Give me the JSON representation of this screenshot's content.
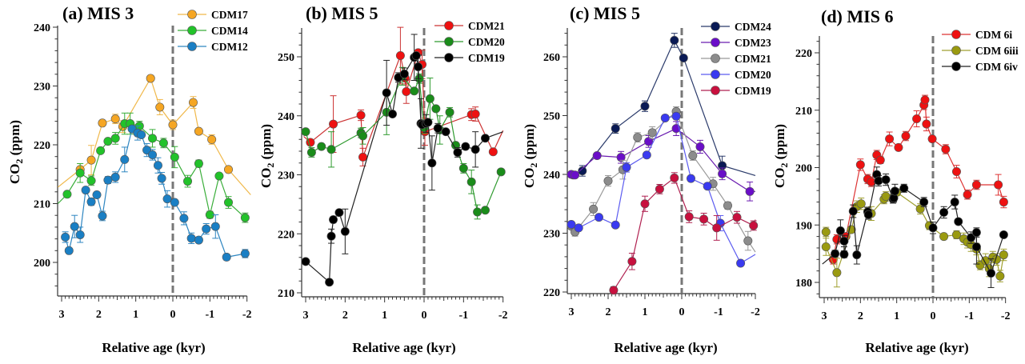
{
  "chart_data": [
    {
      "type": "line",
      "panel_label": "(a)",
      "title": "MIS 3",
      "xlabel": "Relative age (kyr)",
      "ylabel": "CO2 (ppm)",
      "xlim": [
        3,
        -2
      ],
      "ylim": [
        195,
        240
      ],
      "xticks": [
        3,
        2,
        1,
        0,
        -1,
        -2
      ],
      "yticks": [
        200,
        210,
        220,
        230,
        240
      ],
      "vline_x": 0,
      "legend_position": "top-right",
      "series": [
        {
          "name": "CDM17",
          "color": "#f5a623",
          "line": "#f0b84a",
          "x": [
            3.1,
            2.5,
            2.2,
            1.9,
            1.55,
            1.35,
            0.6,
            0.35,
            0.0,
            -0.55,
            -0.7,
            -1.05,
            -1.5,
            -2.1
          ],
          "y": [
            212.8,
            215.8,
            217.4,
            223.7,
            224.4,
            223.1,
            231.3,
            226.4,
            223.4,
            227.2,
            222.3,
            220.9,
            215.8,
            211.5
          ],
          "err": [
            0,
            1,
            2.5,
            0,
            0.8,
            1,
            0,
            1.3,
            0.8,
            1,
            0,
            0.8,
            0,
            0
          ]
        },
        {
          "name": "CDM14",
          "color": "#22c22a",
          "line": "#3aae3a",
          "x": [
            3.1,
            2.85,
            2.5,
            2.2,
            1.95,
            1.75,
            1.55,
            1.3,
            1.15,
            0.9,
            0.55,
            0.25,
            -0.05,
            -0.4,
            -0.7,
            -1.0,
            -1.25,
            -1.5,
            -1.95
          ],
          "y": [
            210.0,
            211.6,
            215.2,
            213.9,
            219.0,
            220.6,
            221.1,
            223.6,
            223.6,
            223.2,
            221.1,
            220.3,
            217.9,
            213.8,
            216.8,
            208.1,
            214.7,
            210.2,
            207.6
          ],
          "err": [
            0,
            0,
            1.6,
            0.8,
            0,
            0,
            1,
            1.8,
            1.8,
            0.8,
            1.5,
            0.8,
            1.8,
            1,
            0.6,
            0.6,
            0,
            1,
            0.8
          ]
        },
        {
          "name": "CDM12",
          "color": "#1a7fc4",
          "line": "#2e86c1",
          "x": [
            2.9,
            2.8,
            2.65,
            2.5,
            2.35,
            2.2,
            2.05,
            1.9,
            1.75,
            1.55,
            1.3,
            1.1,
            0.95,
            0.85,
            0.7,
            0.55,
            0.4,
            0.3,
            0.15,
            -0.05,
            -0.3,
            -0.5,
            -0.7,
            -0.9,
            -1.15,
            -1.45,
            -1.95
          ],
          "y": [
            204.3,
            202.0,
            206.1,
            204.7,
            212.3,
            210.3,
            211.5,
            207.9,
            214.0,
            214.5,
            217.5,
            222.7,
            222.0,
            221.7,
            219.1,
            218.3,
            216.5,
            214.3,
            210.8,
            210.2,
            207.5,
            204.1,
            203.8,
            205.7,
            206.1,
            200.9,
            201.5
          ],
          "err": [
            0.9,
            0,
            1.9,
            1.3,
            0,
            0.6,
            0,
            0.8,
            0.6,
            0.9,
            2.1,
            0,
            1.2,
            0,
            1.1,
            0.9,
            1.3,
            1,
            1.4,
            0,
            1.1,
            0.9,
            0,
            0.9,
            2,
            0.5,
            0.7
          ]
        }
      ]
    },
    {
      "type": "line",
      "panel_label": "(b)",
      "title": "MIS 5",
      "xlabel": "Relative age (kyr)",
      "ylabel": "CO2 (ppm)",
      "xlim": [
        3,
        -2
      ],
      "ylim": [
        209.5,
        255.5
      ],
      "xticks": [
        3,
        2,
        1,
        0,
        -1,
        -2
      ],
      "yticks": [
        210,
        220,
        230,
        240,
        250
      ],
      "vline_x": 0,
      "legend_position": "top-right",
      "series": [
        {
          "name": "CDM21",
          "color": "#ee1111",
          "line": "#cc3333",
          "x": [
            3.05,
            2.88,
            2.3,
            1.6,
            1.55,
            0.6,
            0.48,
            0.45,
            0.15,
            0.05,
            -0.02,
            -1.2,
            -1.3,
            -1.75,
            -2.0
          ],
          "y": [
            236.5,
            235.5,
            238.6,
            240.1,
            233.0,
            250.2,
            246.4,
            244.1,
            250.7,
            248.7,
            237.3,
            240.2,
            240.3,
            233.9,
            237.5
          ],
          "err": [
            0,
            0,
            4.8,
            0.9,
            1.5,
            4.8,
            1,
            2,
            0.5,
            2.4,
            2.3,
            1,
            1.2,
            0,
            0
          ]
        },
        {
          "name": "CDM20",
          "color": "#1a8c1a",
          "line": "#2e9a2e",
          "x": [
            3.0,
            2.85,
            2.6,
            2.35,
            1.6,
            1.55,
            0.95,
            0.55,
            0.25,
            0.12,
            0.0,
            -0.15,
            -0.3,
            -0.4,
            -0.65,
            -0.8,
            -1.0,
            -1.2,
            -1.35,
            -1.55,
            -1.95
          ],
          "y": [
            237.3,
            233.8,
            234.8,
            234.3,
            237.1,
            236.6,
            240.6,
            246.7,
            244.2,
            246.3,
            238.0,
            242.9,
            241.2,
            237.6,
            240.6,
            235.0,
            231.1,
            228.8,
            223.7,
            224.0,
            230.5
          ],
          "err": [
            0,
            0.8,
            0,
            3,
            0.8,
            1.4,
            3.8,
            1.5,
            0,
            0.8,
            1,
            3.5,
            0,
            2.4,
            0.8,
            0,
            0.8,
            2,
            1.2,
            0,
            0
          ]
        },
        {
          "name": "CDM19",
          "color": "#000000",
          "line": "#222222",
          "x": [
            3.0,
            2.4,
            2.35,
            2.3,
            2.15,
            2.0,
            0.95,
            0.8,
            0.65,
            0.5,
            0.25,
            0.2,
            0.15,
            0.08,
            0.05,
            -0.05,
            -0.1,
            -0.2,
            -0.35,
            -0.55,
            -0.85,
            -1.05,
            -1.3,
            -1.55,
            -2.0
          ],
          "y": [
            215.3,
            211.8,
            219.6,
            222.4,
            223.6,
            220.4,
            243.9,
            240.3,
            246.5,
            247.1,
            249.9,
            250.2,
            248.3,
            238.7,
            238.5,
            238.7,
            238.9,
            232.0,
            237.9,
            237.3,
            233.8,
            234.8,
            234.3,
            236.2,
            237.3
          ],
          "err": [
            0,
            0,
            1.2,
            0.5,
            0,
            3.8,
            5.5,
            0,
            0.8,
            1,
            3.9,
            0,
            2,
            4.2,
            0,
            1.5,
            0,
            4.6,
            0.8,
            0,
            0.8,
            0,
            3,
            0,
            0
          ]
        }
      ]
    },
    {
      "type": "line",
      "panel_label": "(c)",
      "title": "MIS 5",
      "xlabel": "Relative age (kyr)",
      "ylabel": "CO2 (ppm)",
      "xlim": [
        3,
        -2
      ],
      "ylim": [
        219.5,
        265
      ],
      "xticks": [
        3,
        2,
        1,
        0,
        -1,
        -2
      ],
      "yticks": [
        220,
        230,
        240,
        250,
        260
      ],
      "vline_x": 0,
      "legend_position": "top-right",
      "series": [
        {
          "name": "CDM24",
          "color": "#0a1a55",
          "line": "#2a3a6a",
          "x": [
            2.95,
            2.7,
            1.8,
            1.0,
            0.2,
            -0.05,
            -1.1,
            -2.0
          ],
          "y": [
            239.9,
            240.6,
            247.8,
            251.6,
            262.8,
            259.8,
            241.5,
            239.8
          ],
          "err": [
            0,
            0.9,
            0.8,
            0.9,
            1.2,
            0,
            1.6,
            0
          ]
        },
        {
          "name": "CDM23",
          "color": "#6a0ec8",
          "line": "#6a1cb0",
          "x": [
            3.0,
            2.9,
            2.3,
            1.65,
            0.9,
            0.15,
            -0.5,
            -1.1,
            -1.85,
            -2.0
          ],
          "y": [
            240.0,
            239.9,
            243.2,
            242.9,
            245.6,
            247.8,
            244.7,
            240.1,
            237.1,
            237.1
          ],
          "err": [
            0,
            0,
            0,
            1,
            1,
            1.2,
            1.1,
            1,
            1.6,
            0
          ]
        },
        {
          "name": "CDM21",
          "color": "#8c8c8c",
          "line": "#999999",
          "x": [
            3.0,
            2.9,
            2.4,
            2.0,
            1.6,
            1.2,
            0.8,
            0.15,
            -0.3,
            -0.85,
            -1.25,
            -1.8,
            -2.0
          ],
          "y": [
            231.2,
            230.2,
            234.1,
            238.9,
            240.8,
            246.3,
            247.1,
            250.7,
            243.2,
            238.4,
            234.7,
            228.7,
            226.8
          ],
          "err": [
            0,
            0.7,
            1.1,
            0.9,
            1.6,
            0.8,
            1,
            0.8,
            0.8,
            1.1,
            0.6,
            1.6,
            0
          ]
        },
        {
          "name": "CDM20",
          "color": "#3a3af0",
          "line": "#5c5cf0",
          "x": [
            3.0,
            2.8,
            2.25,
            1.8,
            1.5,
            0.95,
            0.45,
            0.15,
            -0.25,
            -0.7,
            -1.05,
            -1.6,
            -2.0
          ],
          "y": [
            231.5,
            230.9,
            232.7,
            231.4,
            241.2,
            243.3,
            249.6,
            249.9,
            239.3,
            238.0,
            231.7,
            224.9,
            226.4
          ],
          "err": [
            0,
            0,
            0,
            0,
            0.8,
            0,
            0,
            0.5,
            0,
            0,
            1.3,
            0,
            0
          ]
        },
        {
          "name": "CDM19",
          "color": "#c8103e",
          "line": "#b02050",
          "x": [
            1.85,
            1.35,
            1.0,
            0.6,
            0.2,
            -0.2,
            -0.6,
            -0.95,
            -1.5,
            -1.95,
            -2.0
          ],
          "y": [
            220.3,
            225.2,
            235.0,
            237.5,
            239.4,
            232.8,
            232.4,
            230.9,
            232.7,
            231.3,
            232.3
          ],
          "err": [
            0.6,
            1.4,
            1.3,
            0.8,
            0.9,
            1,
            1,
            2.1,
            1,
            0.8,
            0
          ]
        }
      ]
    },
    {
      "type": "line",
      "panel_label": "(d)",
      "title": "MIS 6",
      "xlabel": "Relative age (kyr)",
      "ylabel": "CO2 (ppm)",
      "xlim": [
        3,
        -2
      ],
      "ylim": [
        177,
        223
      ],
      "xticks": [
        3,
        2,
        1,
        0,
        -1,
        -2
      ],
      "yticks": [
        180,
        190,
        200,
        210,
        220
      ],
      "vline_x": 0,
      "legend_position": "top-right",
      "series": [
        {
          "name": "CDM 6i",
          "color": "#ee1111",
          "line": "#dd3333",
          "x": [
            2.75,
            2.65,
            2.4,
            2.0,
            1.8,
            1.7,
            1.55,
            1.45,
            1.2,
            0.95,
            0.75,
            0.45,
            0.25,
            0.22,
            0.18,
            0.02,
            -0.35,
            -0.65,
            -0.95,
            -1.2,
            -1.8,
            -1.95
          ],
          "y": [
            184.0,
            187.5,
            188.0,
            200.5,
            198.0,
            197.5,
            202.2,
            201.3,
            205.0,
            203.5,
            205.5,
            208.5,
            210.9,
            211.8,
            207.6,
            205.0,
            203.2,
            199.3,
            195.3,
            197.0,
            197.0,
            194.0
          ],
          "err": [
            0.8,
            0.8,
            0,
            1,
            0.8,
            0.8,
            0.8,
            0.6,
            1.2,
            0,
            0.8,
            1.4,
            0.8,
            0.8,
            1.2,
            0,
            0.8,
            1.1,
            0.8,
            0.8,
            1.8,
            1
          ]
        },
        {
          "name": "CDM 6iii",
          "color": "#9a9a10",
          "line": "#a0a030",
          "x": [
            2.95,
            2.95,
            2.65,
            2.25,
            2.1,
            1.98,
            1.7,
            1.35,
            1.3,
            1.0,
            0.35,
            0.1,
            -0.3,
            -0.65,
            -0.85,
            -0.95,
            -1.05,
            -1.2,
            -1.3,
            -1.45,
            -1.55,
            -1.65,
            -1.75,
            -1.85,
            -1.95
          ],
          "y": [
            188.8,
            186.2,
            181.7,
            189.2,
            193.2,
            193.7,
            192.0,
            194.5,
            195.0,
            195.7,
            192.8,
            189.9,
            188.0,
            188.3,
            187.6,
            187.0,
            186.6,
            185.8,
            183.0,
            183.8,
            182.4,
            184.4,
            184.0,
            181.1,
            184.8
          ],
          "err": [
            0.8,
            1.5,
            2.5,
            0,
            1,
            1,
            1.2,
            0.8,
            0.8,
            0.6,
            0.9,
            0.7,
            0.5,
            0.7,
            1,
            1,
            1.2,
            1,
            0.8,
            1.2,
            1.4,
            1,
            1,
            1,
            1
          ]
        },
        {
          "name": "CDM 6iv",
          "color": "#000000",
          "line": "#222222",
          "x": [
            3.05,
            2.7,
            2.55,
            2.45,
            2.45,
            2.2,
            2.1,
            1.8,
            1.78,
            1.55,
            1.5,
            1.3,
            1.1,
            1.08,
            1.05,
            0.8,
            0.25,
            0.0,
            -0.3,
            -0.6,
            -0.7,
            -1.05,
            -1.2,
            -1.2,
            -1.6,
            -1.95
          ],
          "y": [
            183.2,
            185.0,
            189.0,
            187.2,
            184.9,
            192.4,
            184.8,
            192.3,
            191.8,
            198.8,
            197.7,
            197.9,
            194.5,
            194.7,
            195.9,
            196.4,
            194.0,
            189.5,
            192.2,
            194.0,
            190.6,
            187.8,
            188.7,
            186.2,
            181.6,
            188.3
          ],
          "err": [
            0,
            0.6,
            1.9,
            1,
            0.6,
            1.1,
            1.6,
            0.8,
            0.8,
            1.3,
            0.9,
            1,
            0.7,
            0.7,
            1.2,
            0.7,
            0.8,
            1,
            1,
            1.2,
            0,
            1,
            0.8,
            3,
            2.5,
            0
          ]
        }
      ]
    }
  ]
}
